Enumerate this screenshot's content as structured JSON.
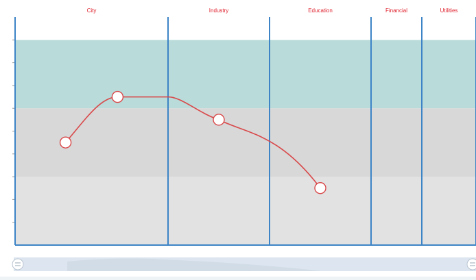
{
  "chart_data": {
    "type": "line",
    "categories": [
      "City",
      "Industry",
      "Education",
      "Financial",
      "Utilities"
    ],
    "category_labels": [
      "City",
      "Industry",
      "Education",
      "Financial",
      "Utilities"
    ],
    "y_range": [
      0,
      10
    ],
    "bands": [
      {
        "from": 0,
        "to": 3,
        "color": "#e2e2e2"
      },
      {
        "from": 3,
        "to": 6,
        "color": "#d8d8d8"
      },
      {
        "from": 6,
        "to": 9,
        "color": "#b9dbd9"
      }
    ],
    "series": [
      {
        "color": "#d9484a",
        "points": [
          {
            "category": "City",
            "position": 0.33,
            "value": 4.5
          },
          {
            "category": "City",
            "position": 0.67,
            "value": 6.5
          },
          {
            "category": "Industry",
            "position": 0.5,
            "value": 5.5
          },
          {
            "category": "Education",
            "position": 0.5,
            "value": 2.5
          }
        ]
      }
    ],
    "xlabel": "",
    "ylabel": "",
    "grid": false,
    "data_zoom": true
  },
  "colors": {
    "label": "#e0232f",
    "divider": "#3c84c6",
    "marker_fill": "#ffffff",
    "slider_bg": "#dde6f0"
  }
}
